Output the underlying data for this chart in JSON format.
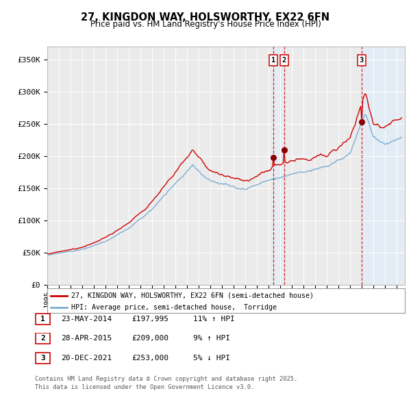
{
  "title_line1": "27, KINGDON WAY, HOLSWORTHY, EX22 6FN",
  "title_line2": "Price paid vs. HM Land Registry's House Price Index (HPI)",
  "background_color": "#ffffff",
  "plot_bg_color": "#ebebeb",
  "grid_color": "#ffffff",
  "red_line_color": "#cc0000",
  "blue_line_color": "#7aadd4",
  "blue_shade_color": "#ddeeff",
  "marker_color": "#880000",
  "vline_color": "#cc0000",
  "ylim": [
    0,
    370000
  ],
  "xlim_start": 1995.0,
  "xlim_end": 2025.7,
  "yticks": [
    0,
    50000,
    100000,
    150000,
    200000,
    250000,
    300000,
    350000
  ],
  "ytick_labels": [
    "£0",
    "£50K",
    "£100K",
    "£150K",
    "£200K",
    "£250K",
    "£300K",
    "£350K"
  ],
  "xticks": [
    1995,
    1996,
    1997,
    1998,
    1999,
    2000,
    2001,
    2002,
    2003,
    2004,
    2005,
    2006,
    2007,
    2008,
    2009,
    2010,
    2011,
    2012,
    2013,
    2014,
    2015,
    2016,
    2017,
    2018,
    2019,
    2020,
    2021,
    2022,
    2023,
    2024,
    2025
  ],
  "sale_dates": [
    2014.39,
    2015.33,
    2021.97
  ],
  "sale_prices": [
    197995,
    209000,
    253000
  ],
  "sale_labels": [
    "1",
    "2",
    "3"
  ],
  "legend_entries": [
    "27, KINGDON WAY, HOLSWORTHY, EX22 6FN (semi-detached house)",
    "HPI: Average price, semi-detached house,  Torridge"
  ],
  "table_rows": [
    {
      "num": "1",
      "date": "23-MAY-2014",
      "price": "£197,995",
      "change": "11% ↑ HPI"
    },
    {
      "num": "2",
      "date": "28-APR-2015",
      "price": "£209,000",
      "change": "9% ↑ HPI"
    },
    {
      "num": "3",
      "date": "20-DEC-2021",
      "price": "£253,000",
      "change": "5% ↓ HPI"
    }
  ],
  "footnote_line1": "Contains HM Land Registry data © Crown copyright and database right 2025.",
  "footnote_line2": "This data is licensed under the Open Government Licence v3.0."
}
